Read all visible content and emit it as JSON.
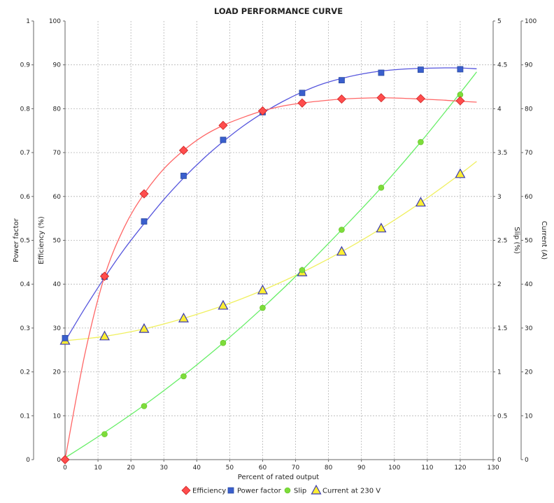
{
  "chart_data": {
    "type": "line",
    "title": "LOAD PERFORMANCE CURVE",
    "xlabel": "Percent of rated output",
    "xlim": [
      0,
      130
    ],
    "xticks": [
      "0",
      "10",
      "20",
      "30",
      "40",
      "50",
      "60",
      "70",
      "80",
      "90",
      "100",
      "110",
      "120",
      "130"
    ],
    "grid": true,
    "legend_position": "bottom",
    "y_axes": [
      {
        "id": "pf",
        "label": "Power factor",
        "side": "left",
        "lim": [
          0,
          1
        ],
        "ticks": [
          "0",
          "0.1",
          "0.2",
          "0.3",
          "0.4",
          "0.5",
          "0.6",
          "0.7",
          "0.8",
          "0.9",
          "1"
        ]
      },
      {
        "id": "eff",
        "label": "Efficiency (%)",
        "side": "left",
        "lim": [
          0,
          100
        ],
        "ticks": [
          "0",
          "10",
          "20",
          "30",
          "40",
          "50",
          "60",
          "70",
          "80",
          "90",
          "100"
        ]
      },
      {
        "id": "slip",
        "label": "Slip (%)",
        "side": "right",
        "lim": [
          0,
          5
        ],
        "ticks": [
          "0",
          "0.5",
          "1",
          "1.5",
          "2",
          "2.5",
          "3",
          "3.5",
          "4",
          "4.5",
          "5"
        ]
      },
      {
        "id": "cur",
        "label": "Current (A)",
        "side": "right",
        "lim": [
          0,
          100
        ],
        "ticks": [
          "0",
          "10",
          "20",
          "30",
          "40",
          "50",
          "60",
          "70",
          "80",
          "90",
          "100"
        ]
      }
    ],
    "series": [
      {
        "name": "Efficiency",
        "axis": "eff",
        "color": "#ff4d4d",
        "line_color": "#ff6666",
        "marker": "diamond",
        "points": [
          [
            0,
            0
          ],
          [
            12,
            41.8
          ],
          [
            24,
            60.6
          ],
          [
            36,
            70.5
          ],
          [
            48,
            76.2
          ],
          [
            60,
            79.5
          ],
          [
            72,
            81.3
          ],
          [
            84,
            82.2
          ],
          [
            96,
            82.5
          ],
          [
            108,
            82.3
          ],
          [
            120,
            81.8
          ]
        ],
        "curve": [
          [
            0,
            0
          ],
          [
            6,
            24
          ],
          [
            12,
            41.8
          ],
          [
            18,
            53
          ],
          [
            24,
            60.6
          ],
          [
            30,
            66.3
          ],
          [
            36,
            70.5
          ],
          [
            42,
            73.8
          ],
          [
            48,
            76.2
          ],
          [
            54,
            78
          ],
          [
            60,
            79.5
          ],
          [
            66,
            80.6
          ],
          [
            72,
            81.3
          ],
          [
            78,
            81.8
          ],
          [
            84,
            82.2
          ],
          [
            90,
            82.4
          ],
          [
            96,
            82.5
          ],
          [
            102,
            82.4
          ],
          [
            108,
            82.2
          ],
          [
            114,
            82
          ],
          [
            120,
            81.7
          ],
          [
            125,
            81.5
          ]
        ]
      },
      {
        "name": "Power factor",
        "axis": "pf",
        "color": "#3a5fcd",
        "line_color": "#5555dd",
        "marker": "square",
        "points": [
          [
            0,
            0.277
          ],
          [
            12,
            0.417
          ],
          [
            24,
            0.543
          ],
          [
            36,
            0.647
          ],
          [
            48,
            0.729
          ],
          [
            60,
            0.792
          ],
          [
            72,
            0.836
          ],
          [
            84,
            0.865
          ],
          [
            96,
            0.882
          ],
          [
            108,
            0.889
          ],
          [
            120,
            0.89
          ]
        ],
        "curve": [
          [
            0,
            0.27
          ],
          [
            6,
            0.345
          ],
          [
            12,
            0.415
          ],
          [
            18,
            0.48
          ],
          [
            24,
            0.538
          ],
          [
            30,
            0.593
          ],
          [
            36,
            0.642
          ],
          [
            42,
            0.686
          ],
          [
            48,
            0.725
          ],
          [
            54,
            0.76
          ],
          [
            60,
            0.79
          ],
          [
            66,
            0.816
          ],
          [
            72,
            0.838
          ],
          [
            78,
            0.856
          ],
          [
            84,
            0.869
          ],
          [
            90,
            0.879
          ],
          [
            96,
            0.886
          ],
          [
            102,
            0.89
          ],
          [
            108,
            0.892
          ],
          [
            114,
            0.893
          ],
          [
            120,
            0.893
          ],
          [
            125,
            0.891
          ]
        ]
      },
      {
        "name": "Slip",
        "axis": "slip",
        "color": "#7ddc3a",
        "line_color": "#66ee66",
        "marker": "circle",
        "points": [
          [
            0,
            0
          ],
          [
            12,
            0.29
          ],
          [
            24,
            0.61
          ],
          [
            36,
            0.95
          ],
          [
            48,
            1.33
          ],
          [
            60,
            1.73
          ],
          [
            72,
            2.16
          ],
          [
            84,
            2.62
          ],
          [
            96,
            3.1
          ],
          [
            108,
            3.62
          ],
          [
            120,
            4.16
          ]
        ],
        "curve": [
          [
            0,
            0.02
          ],
          [
            12,
            0.31
          ],
          [
            24,
            0.62
          ],
          [
            36,
            0.96
          ],
          [
            48,
            1.33
          ],
          [
            60,
            1.73
          ],
          [
            72,
            2.16
          ],
          [
            84,
            2.62
          ],
          [
            96,
            3.1
          ],
          [
            108,
            3.62
          ],
          [
            120,
            4.18
          ],
          [
            125,
            4.42
          ]
        ]
      },
      {
        "name": "Current at 230 V",
        "axis": "cur",
        "color": "#ffee33",
        "line_color": "#f0f060",
        "marker": "triangle",
        "points": [
          [
            0,
            27.1
          ],
          [
            12,
            28.1
          ],
          [
            24,
            29.8
          ],
          [
            36,
            32.2
          ],
          [
            48,
            35.1
          ],
          [
            60,
            38.6
          ],
          [
            72,
            42.7
          ],
          [
            84,
            47.4
          ],
          [
            96,
            52.7
          ],
          [
            108,
            58.6
          ],
          [
            120,
            65.1
          ]
        ],
        "curve": [
          [
            0,
            27.1
          ],
          [
            12,
            28.1
          ],
          [
            24,
            29.8
          ],
          [
            36,
            32.2
          ],
          [
            48,
            35.1
          ],
          [
            60,
            38.6
          ],
          [
            72,
            42.7
          ],
          [
            84,
            47.4
          ],
          [
            96,
            52.7
          ],
          [
            108,
            58.6
          ],
          [
            120,
            65.1
          ],
          [
            125,
            68
          ]
        ]
      }
    ]
  }
}
